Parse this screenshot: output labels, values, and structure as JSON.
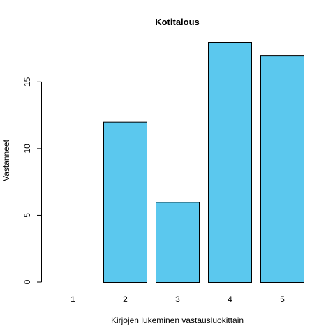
{
  "chart_data": {
    "type": "bar",
    "title": "Kotitalous",
    "xlabel": "Kirjojen lukeminen vastausluokittain",
    "ylabel": "Vastanneet",
    "categories": [
      "1",
      "2",
      "3",
      "4",
      "5"
    ],
    "values": [
      0,
      12,
      6,
      18,
      17
    ],
    "yticks": [
      "0",
      "5",
      "10",
      "15"
    ],
    "ylim": [
      0,
      18
    ],
    "bar_color": "#5bc8ee",
    "grid": false,
    "legend": "none"
  }
}
